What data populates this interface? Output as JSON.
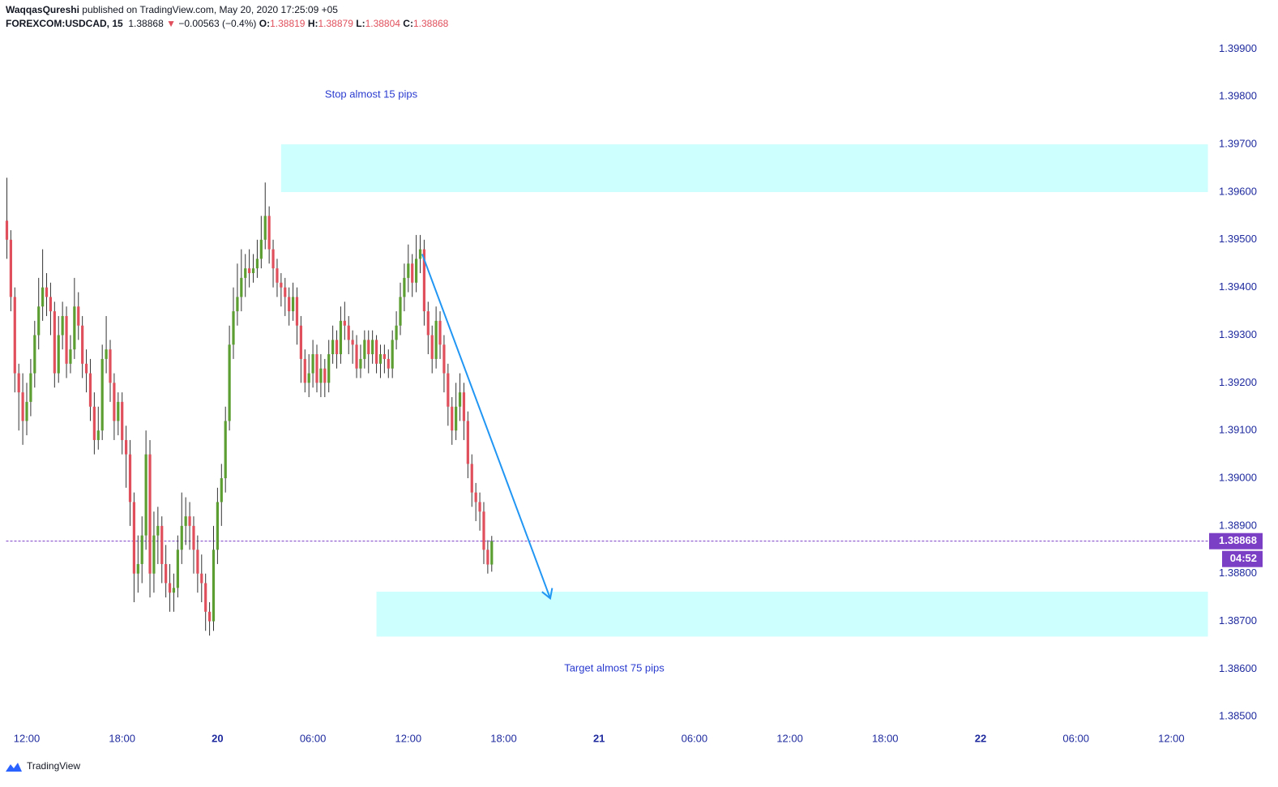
{
  "header": {
    "author": "WaqqasQureshi",
    "published": "published on TradingView.com, May 20, 2020 17:25:09 +05",
    "symbol": "FOREXCOM:USDCAD, 15",
    "arrow": "▼",
    "change": "−0.00563 (−0.4%)",
    "o_label": "O:",
    "h_label": "H:",
    "l_label": "L:",
    "c_label": "C:"
  },
  "chart_data": {
    "type": "candlestick",
    "x": [
      10.75,
      11,
      11.25,
      11.5,
      11.75,
      12,
      12.25,
      12.5,
      12.75,
      13,
      13.25,
      13.5,
      13.75,
      14,
      14.25,
      14.5,
      14.75,
      15,
      15.25,
      15.5,
      15.75,
      16,
      16.25,
      16.5,
      16.75,
      17,
      17.25,
      17.5,
      17.75,
      18,
      18.25,
      18.5,
      18.75,
      19,
      19.25,
      19.5,
      19.75,
      20,
      20.25,
      20.5,
      20.75,
      21,
      21.25,
      21.5,
      21.75,
      22,
      22.25,
      22.5,
      22.75,
      23,
      23.25,
      23.5,
      23.75,
      24,
      24.25,
      24.5,
      24.75,
      25,
      25.25,
      25.5,
      25.75,
      26,
      26.25,
      26.5,
      26.75,
      27,
      27.25,
      27.5,
      27.75,
      28,
      28.25,
      28.5,
      28.75,
      29,
      29.25,
      29.5,
      29.75,
      30,
      30.25,
      30.5,
      30.75,
      31,
      31.25,
      31.5,
      31.75,
      32,
      32.25,
      32.5,
      32.75,
      33,
      33.25,
      33.5,
      33.75,
      34,
      34.25,
      34.5,
      34.75,
      35,
      35.25,
      35.5,
      35.75,
      36,
      36.25,
      36.5,
      36.75,
      37,
      37.25,
      37.5,
      37.75,
      38,
      38.25,
      38.5,
      38.75,
      39,
      39.25,
      39.5,
      39.75,
      40,
      40.25,
      40.5,
      40.75,
      41,
      41.25
    ],
    "open": [
      1.3954,
      1.395,
      1.3938,
      1.3922,
      1.3918,
      1.3912,
      1.3916,
      1.3922,
      1.393,
      1.3936,
      1.394,
      1.3938,
      1.3935,
      1.3922,
      1.393,
      1.3934,
      1.3924,
      1.3927,
      1.3936,
      1.3932,
      1.3924,
      1.3922,
      1.3915,
      1.3908,
      1.391,
      1.3925,
      1.3927,
      1.392,
      1.3912,
      1.3916,
      1.3908,
      1.3905,
      1.3895,
      1.388,
      1.3882,
      1.3888,
      1.3905,
      1.388,
      1.3888,
      1.389,
      1.3882,
      1.3878,
      1.3876,
      1.3877,
      1.3885,
      1.389,
      1.3892,
      1.389,
      1.3885,
      1.388,
      1.3878,
      1.3872,
      1.387,
      1.3885,
      1.3895,
      1.39,
      1.3912,
      1.3928,
      1.3935,
      1.3938,
      1.3942,
      1.3944,
      1.3943,
      1.3944,
      1.3946,
      1.395,
      1.3955,
      1.3948,
      1.3944,
      1.3941,
      1.394,
      1.3938,
      1.3935,
      1.3938,
      1.3932,
      1.3925,
      1.392,
      1.3922,
      1.3926,
      1.392,
      1.3923,
      1.392,
      1.3926,
      1.3929,
      1.3926,
      1.3933,
      1.3932,
      1.3929,
      1.3928,
      1.3923,
      1.3925,
      1.3929,
      1.3926,
      1.3929,
      1.3924,
      1.3926,
      1.3925,
      1.3923,
      1.3929,
      1.3932,
      1.3938,
      1.3942,
      1.3945,
      1.3941,
      1.3946,
      1.3948,
      1.3935,
      1.393,
      1.3925,
      1.3933,
      1.3928,
      1.3922,
      1.3915,
      1.391,
      1.3915,
      1.3918,
      1.3912,
      1.3903,
      1.3897,
      1.3895,
      1.3893,
      1.3885,
      1.38819
    ],
    "high": [
      1.3963,
      1.3952,
      1.394,
      1.3924,
      1.3922,
      1.392,
      1.3925,
      1.3933,
      1.3942,
      1.3948,
      1.3943,
      1.3941,
      1.3937,
      1.3934,
      1.3937,
      1.3936,
      1.393,
      1.3942,
      1.3939,
      1.3934,
      1.3927,
      1.3925,
      1.3918,
      1.3915,
      1.3928,
      1.3934,
      1.3929,
      1.3922,
      1.3918,
      1.3918,
      1.3911,
      1.3908,
      1.3897,
      1.3888,
      1.3892,
      1.391,
      1.3908,
      1.3893,
      1.3894,
      1.3892,
      1.3886,
      1.3882,
      1.388,
      1.3888,
      1.3897,
      1.3896,
      1.3895,
      1.3892,
      1.3888,
      1.3884,
      1.388,
      1.3874,
      1.389,
      1.3898,
      1.3903,
      1.3915,
      1.3932,
      1.394,
      1.3945,
      1.3948,
      1.3947,
      1.3948,
      1.3947,
      1.395,
      1.3955,
      1.3962,
      1.3957,
      1.395,
      1.3946,
      1.3943,
      1.3942,
      1.394,
      1.3941,
      1.394,
      1.3934,
      1.3927,
      1.3926,
      1.3929,
      1.3928,
      1.3926,
      1.3925,
      1.3929,
      1.3932,
      1.3931,
      1.3936,
      1.3937,
      1.3934,
      1.3931,
      1.393,
      1.3928,
      1.3931,
      1.3931,
      1.3931,
      1.393,
      1.3928,
      1.3928,
      1.3927,
      1.3931,
      1.3935,
      1.3941,
      1.3945,
      1.3949,
      1.3947,
      1.3951,
      1.3951,
      1.395,
      1.3937,
      1.3932,
      1.3936,
      1.3935,
      1.393,
      1.3924,
      1.3917,
      1.392,
      1.3922,
      1.392,
      1.3914,
      1.3905,
      1.3899,
      1.3897,
      1.3895,
      1.3887,
      1.38879
    ],
    "low": [
      1.3946,
      1.3935,
      1.3918,
      1.391,
      1.3907,
      1.3909,
      1.3913,
      1.3919,
      1.3927,
      1.3933,
      1.3934,
      1.393,
      1.3919,
      1.392,
      1.3927,
      1.3921,
      1.3922,
      1.3925,
      1.3929,
      1.3921,
      1.3918,
      1.3912,
      1.3905,
      1.3906,
      1.3908,
      1.3922,
      1.3916,
      1.3908,
      1.3909,
      1.3905,
      1.3898,
      1.389,
      1.3874,
      1.3876,
      1.3878,
      1.3885,
      1.3875,
      1.3876,
      1.3882,
      1.3878,
      1.3875,
      1.3872,
      1.3872,
      1.3875,
      1.3882,
      1.3886,
      1.3885,
      1.388,
      1.3876,
      1.3874,
      1.3868,
      1.3867,
      1.3868,
      1.3882,
      1.389,
      1.3897,
      1.391,
      1.3925,
      1.3932,
      1.3935,
      1.3938,
      1.394,
      1.3941,
      1.3942,
      1.3944,
      1.3948,
      1.3945,
      1.394,
      1.3938,
      1.3936,
      1.3934,
      1.3932,
      1.3933,
      1.3928,
      1.392,
      1.3918,
      1.3917,
      1.3919,
      1.3918,
      1.3917,
      1.3917,
      1.3918,
      1.3924,
      1.3923,
      1.3924,
      1.3929,
      1.3926,
      1.3924,
      1.3921,
      1.3921,
      1.3923,
      1.3922,
      1.3924,
      1.3922,
      1.3921,
      1.3922,
      1.3921,
      1.3921,
      1.3927,
      1.393,
      1.3935,
      1.3939,
      1.3938,
      1.3939,
      1.3943,
      1.3932,
      1.3926,
      1.3922,
      1.3923,
      1.3925,
      1.3918,
      1.3911,
      1.3907,
      1.3908,
      1.3912,
      1.3908,
      1.39,
      1.3894,
      1.3891,
      1.3889,
      1.3882,
      1.388,
      1.38804
    ],
    "close": [
      1.395,
      1.3938,
      1.3922,
      1.3918,
      1.3912,
      1.3916,
      1.3922,
      1.393,
      1.3936,
      1.394,
      1.3938,
      1.3935,
      1.3922,
      1.393,
      1.3934,
      1.3924,
      1.3927,
      1.3936,
      1.3932,
      1.3924,
      1.3922,
      1.3915,
      1.3908,
      1.391,
      1.3925,
      1.3927,
      1.392,
      1.3912,
      1.3916,
      1.3908,
      1.3905,
      1.3895,
      1.388,
      1.3882,
      1.3888,
      1.3905,
      1.388,
      1.3888,
      1.389,
      1.3882,
      1.3878,
      1.3876,
      1.3877,
      1.3885,
      1.389,
      1.3892,
      1.389,
      1.3885,
      1.388,
      1.3878,
      1.3872,
      1.387,
      1.3885,
      1.3895,
      1.39,
      1.3912,
      1.3928,
      1.3935,
      1.3938,
      1.3942,
      1.3944,
      1.3943,
      1.3944,
      1.3946,
      1.395,
      1.3955,
      1.3948,
      1.3944,
      1.3941,
      1.394,
      1.3938,
      1.3935,
      1.3938,
      1.3932,
      1.3925,
      1.392,
      1.3922,
      1.3926,
      1.392,
      1.3923,
      1.392,
      1.3926,
      1.3929,
      1.3926,
      1.3933,
      1.3932,
      1.3929,
      1.3928,
      1.3923,
      1.3925,
      1.3929,
      1.3926,
      1.3929,
      1.3924,
      1.3926,
      1.3925,
      1.3923,
      1.3929,
      1.3932,
      1.3938,
      1.3942,
      1.3945,
      1.3941,
      1.3946,
      1.3948,
      1.3935,
      1.393,
      1.3925,
      1.3933,
      1.3928,
      1.3922,
      1.3915,
      1.391,
      1.3915,
      1.3918,
      1.3912,
      1.3903,
      1.3897,
      1.3895,
      1.3893,
      1.3885,
      1.38819,
      1.38868
    ],
    "up_color": "#5c9e31",
    "down_color": "#e0505c",
    "xlim": [
      10.7,
      86.3
    ],
    "xticks": [
      {
        "value": 12,
        "label": "12:00"
      },
      {
        "value": 18,
        "label": "18:00"
      },
      {
        "value": 24,
        "label": "20"
      },
      {
        "value": 30,
        "label": "06:00"
      },
      {
        "value": 36,
        "label": "12:00"
      },
      {
        "value": 42,
        "label": "18:00"
      },
      {
        "value": 48,
        "label": "21"
      },
      {
        "value": 54,
        "label": "06:00"
      },
      {
        "value": 60,
        "label": "12:00"
      },
      {
        "value": 66,
        "label": "18:00"
      },
      {
        "value": 72,
        "label": "22"
      },
      {
        "value": 78,
        "label": "06:00"
      },
      {
        "value": 84,
        "label": "12:00"
      }
    ],
    "ylim": [
      1.3848,
      1.3995
    ],
    "yticks": [
      {
        "value": 1.385,
        "label": "1.38500"
      },
      {
        "value": 1.386,
        "label": "1.38600"
      },
      {
        "value": 1.387,
        "label": "1.38700"
      },
      {
        "value": 1.388,
        "label": "1.38800"
      },
      {
        "value": 1.389,
        "label": "1.38900"
      },
      {
        "value": 1.39,
        "label": "1.39000"
      },
      {
        "value": 1.391,
        "label": "1.39100"
      },
      {
        "value": 1.392,
        "label": "1.39200"
      },
      {
        "value": 1.393,
        "label": "1.39300"
      },
      {
        "value": 1.394,
        "label": "1.39400"
      },
      {
        "value": 1.395,
        "label": "1.39500"
      },
      {
        "value": 1.396,
        "label": "1.39600"
      },
      {
        "value": 1.397,
        "label": "1.39700"
      },
      {
        "value": 1.398,
        "label": "1.39800"
      },
      {
        "value": 1.399,
        "label": "1.39900"
      }
    ],
    "zones": [
      {
        "x0": 28,
        "top": 1.397,
        "bottom": 1.396,
        "color": "#ccfffe"
      },
      {
        "x0": 34,
        "top": 1.38762,
        "bottom": 1.38668,
        "color": "#ccfffe"
      }
    ],
    "arrow": {
      "x": [
        36.875,
        44.93
      ],
      "y": [
        1.3947,
        1.38748
      ],
      "color": "#2196f3"
    },
    "annotations": [
      {
        "text": "Stop almost 15 pips"
      },
      {
        "text": "Target almost 75 pips"
      }
    ],
    "price_line_color": "#7b3fc6",
    "countdown": "04:52"
  },
  "footer": {
    "logo": "TradingView"
  }
}
